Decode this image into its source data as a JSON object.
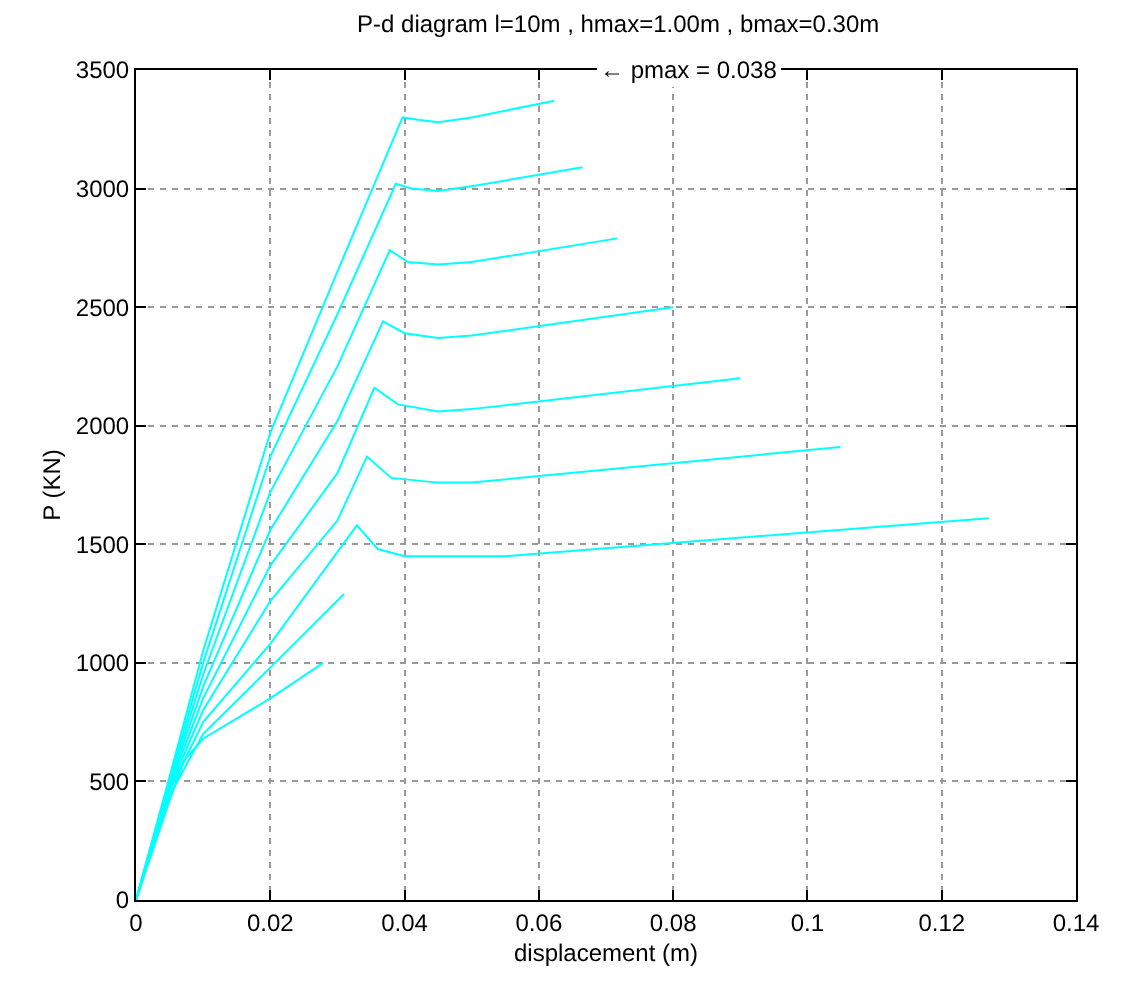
{
  "chart_data": {
    "type": "line",
    "title": "P-d diagram l=10m , hmax=1.00m , bmax=0.30m",
    "xlabel": "displacement (m)",
    "ylabel": "P (KN)",
    "annotations": [
      "← pmax = 0.038"
    ],
    "xlim": [
      0,
      0.14
    ],
    "xticks": [
      0,
      0.02,
      0.04,
      0.06,
      0.08,
      0.1,
      0.12,
      0.14
    ],
    "ylim": [
      0,
      3500
    ],
    "yticks": [
      0,
      500,
      1000,
      1500,
      2000,
      2500,
      3000,
      3500
    ],
    "grid": true,
    "marker": "none",
    "line_style": "solid",
    "series": [
      {
        "color": "#00ffff",
        "x": [
          0,
          0.005,
          0.01,
          0.02,
          0.03,
          0.0397,
          0.042,
          0.045,
          0.05,
          0.0623
        ],
        "values": [
          0,
          520,
          1050,
          1970,
          2650,
          3300,
          3290,
          3280,
          3300,
          3370
        ]
      },
      {
        "color": "#00ffff",
        "x": [
          0,
          0.005,
          0.01,
          0.02,
          0.03,
          0.0387,
          0.041,
          0.045,
          0.05,
          0.0665
        ],
        "values": [
          0,
          510,
          1000,
          1870,
          2470,
          3020,
          3000,
          2990,
          3010,
          3090
        ]
      },
      {
        "color": "#00ffff",
        "x": [
          0,
          0.005,
          0.01,
          0.02,
          0.03,
          0.0378,
          0.0405,
          0.045,
          0.05,
          0.0717
        ],
        "values": [
          0,
          500,
          950,
          1720,
          2250,
          2740,
          2690,
          2680,
          2690,
          2790
        ]
      },
      {
        "color": "#00ffff",
        "x": [
          0,
          0.005,
          0.01,
          0.02,
          0.03,
          0.0368,
          0.04,
          0.045,
          0.05,
          0.08
        ],
        "values": [
          0,
          490,
          900,
          1560,
          2020,
          2440,
          2390,
          2370,
          2380,
          2500
        ]
      },
      {
        "color": "#00ffff",
        "x": [
          0,
          0.005,
          0.01,
          0.02,
          0.03,
          0.0355,
          0.039,
          0.045,
          0.05,
          0.09
        ],
        "values": [
          0,
          480,
          850,
          1410,
          1800,
          2160,
          2090,
          2060,
          2070,
          2200
        ]
      },
      {
        "color": "#00ffff",
        "x": [
          0,
          0.005,
          0.01,
          0.02,
          0.03,
          0.0344,
          0.038,
          0.045,
          0.05,
          0.1049
        ],
        "values": [
          0,
          470,
          800,
          1260,
          1600,
          1870,
          1780,
          1760,
          1760,
          1910
        ]
      },
      {
        "color": "#00ffff",
        "x": [
          0,
          0.005,
          0.01,
          0.02,
          0.0329,
          0.036,
          0.04,
          0.045,
          0.055,
          0.127
        ],
        "values": [
          0,
          460,
          750,
          1080,
          1580,
          1480,
          1450,
          1450,
          1450,
          1610
        ]
      },
      {
        "color": "#00ffff",
        "x": [
          0,
          0.005,
          0.01,
          0.02,
          0.031
        ],
        "values": [
          0,
          440,
          700,
          980,
          1290
        ]
      },
      {
        "color": "#00ffff",
        "x": [
          0,
          0.005,
          0.0072,
          0.01,
          0.02,
          0.0279
        ],
        "values": [
          0,
          420,
          590,
          680,
          850,
          1000
        ]
      }
    ]
  }
}
